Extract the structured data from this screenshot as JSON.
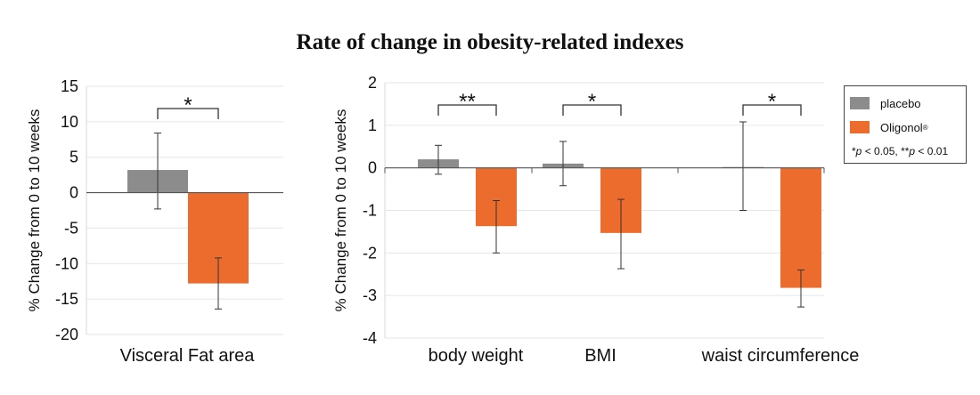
{
  "title": "Rate of change in obesity-related indexes",
  "legend": {
    "items": [
      {
        "label": "placebo",
        "color": "#8c8c8c"
      },
      {
        "label": "Oligonol",
        "sup": "®",
        "color": "#ec6c2e"
      }
    ],
    "note": {
      "star1": "*",
      "p1": "p",
      "text1": " < 0.05, ",
      "star2": "**",
      "p2": "p",
      "text2": " < 0.01"
    }
  },
  "chart_data": [
    {
      "type": "bar",
      "ylabel": "% Change from 0 to 10 weeks",
      "ylim": [
        -20,
        15
      ],
      "yticks": [
        15,
        10,
        5,
        0,
        -5,
        -10,
        -15,
        -20
      ],
      "categories": [
        "Visceral Fat area"
      ],
      "series": [
        {
          "name": "placebo",
          "color": "#8c8c8c",
          "values": [
            3.2
          ],
          "err_low": [
            -2.3
          ],
          "err_high": [
            8.4
          ]
        },
        {
          "name": "Oligonol®",
          "color": "#ec6c2e",
          "values": [
            -12.8
          ],
          "err_low": [
            -16.4
          ],
          "err_high": [
            -9.2
          ]
        }
      ],
      "significance": [
        "*"
      ],
      "grid": true
    },
    {
      "type": "bar",
      "ylabel": "% Change from 0 to 10 weeks",
      "ylim": [
        -4,
        2
      ],
      "yticks": [
        2,
        1,
        0,
        -1,
        -2,
        -3,
        -4
      ],
      "categories": [
        "body weight",
        "BMI",
        "waist circumference"
      ],
      "series": [
        {
          "name": "placebo",
          "color": "#8c8c8c",
          "values": [
            0.2,
            0.1,
            0.02
          ],
          "err_low": [
            -0.15,
            -0.42,
            -1.0
          ],
          "err_high": [
            0.53,
            0.62,
            1.08
          ]
        },
        {
          "name": "Oligonol®",
          "color": "#ec6c2e",
          "values": [
            -1.37,
            -1.53,
            -2.82
          ],
          "err_low": [
            -2.0,
            -2.37,
            -3.27
          ],
          "err_high": [
            -0.77,
            -0.74,
            -2.4
          ]
        }
      ],
      "significance": [
        "**",
        "*",
        "*"
      ],
      "grid": true
    }
  ]
}
